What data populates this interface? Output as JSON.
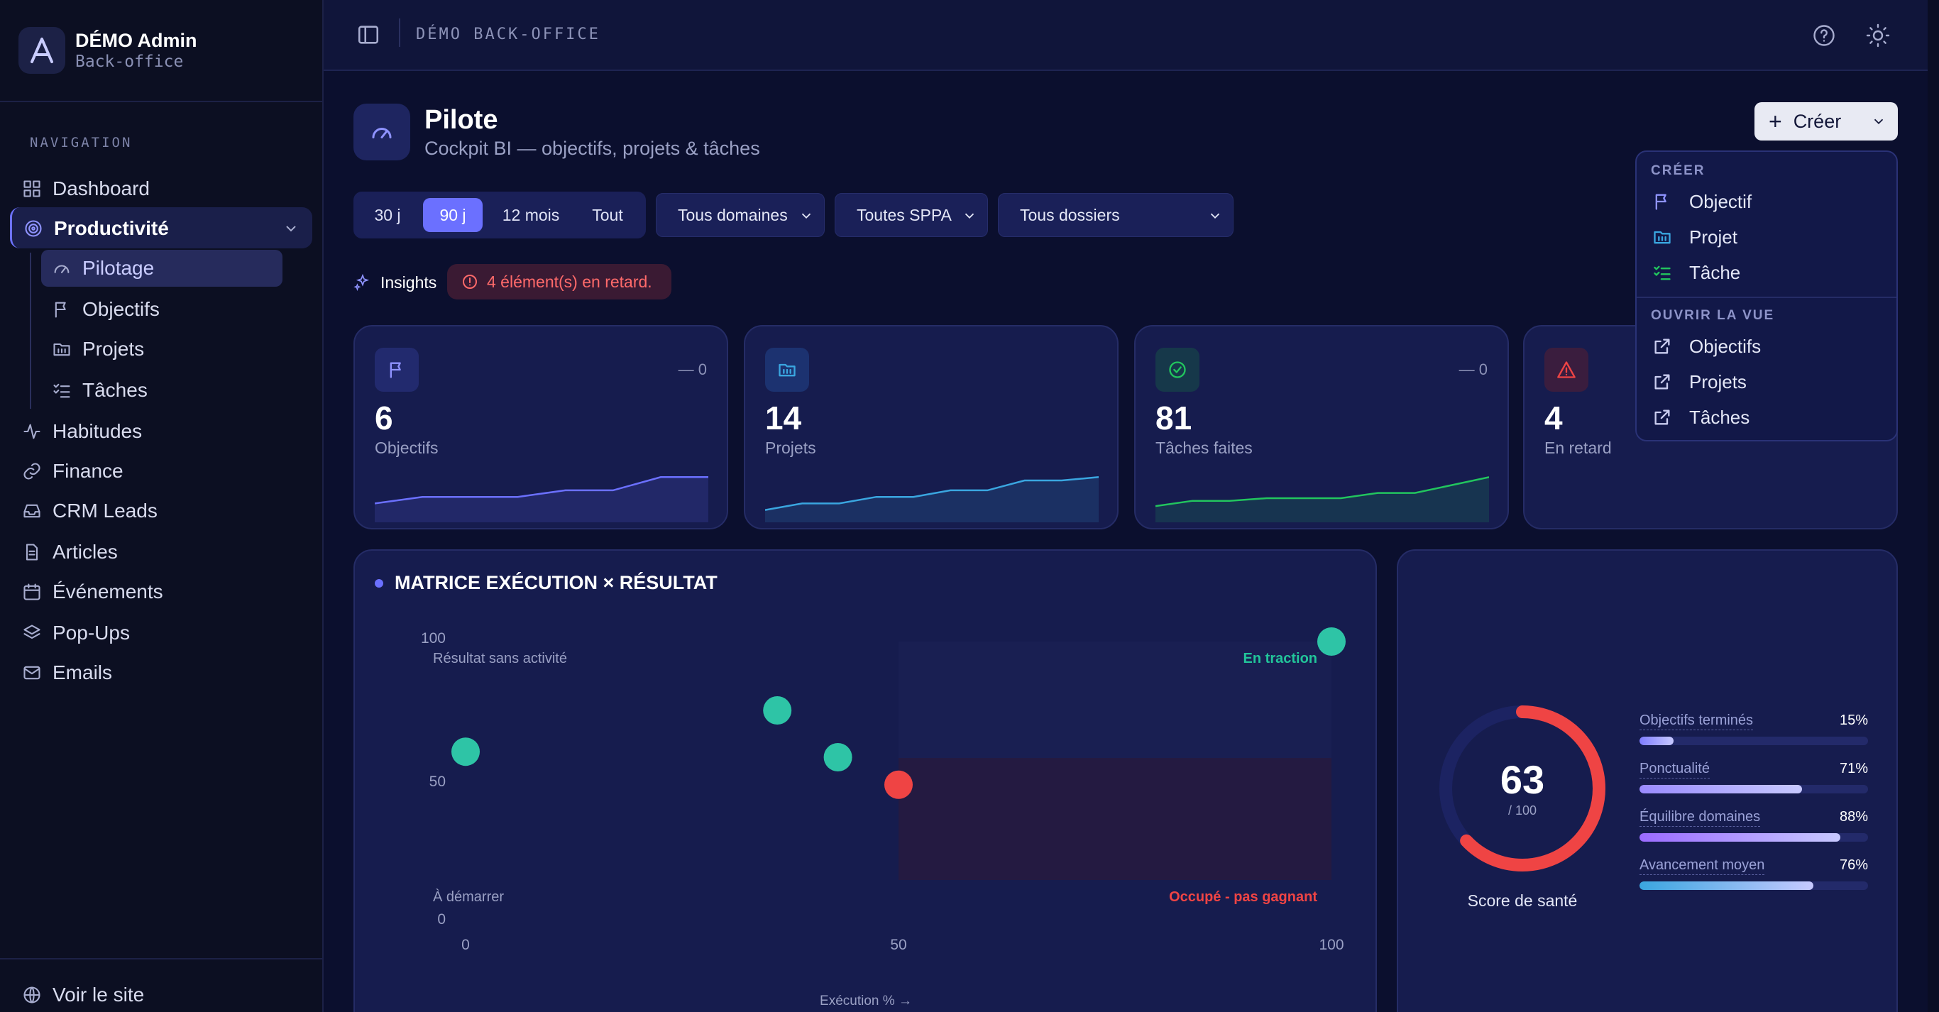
{
  "brand": {
    "name": "DÉMO Admin",
    "subtitle": "Back-office"
  },
  "nav": {
    "title": "NAVIGATION",
    "items": {
      "dashboard": "Dashboard",
      "productivite": "Productivité",
      "pilotage": "Pilotage",
      "objectifs": "Objectifs",
      "projets": "Projets",
      "taches": "Tâches",
      "habitudes": "Habitudes",
      "finance": "Finance",
      "crm": "CRM Leads",
      "articles": "Articles",
      "evenements": "Événements",
      "popups": "Pop-Ups",
      "emails": "Emails"
    },
    "footer": "Voir le site"
  },
  "topbar": {
    "title": "DÉMO BACK-OFFICE"
  },
  "header": {
    "title": "Pilote",
    "subtitle": "Cockpit BI — objectifs, projets & tâches"
  },
  "create_button": {
    "label": "Créer"
  },
  "filters": {
    "periods": [
      "30 j",
      "90 j",
      "12 mois",
      "Tout"
    ],
    "active_period": "90 j",
    "domain": "Tous domaines",
    "sppa": "Toutes SPPA",
    "dossiers": "Tous dossiers"
  },
  "insights": {
    "label": "Insights",
    "alert": "4 élément(s) en retard."
  },
  "kpis": [
    {
      "value": "6",
      "label": "Objectifs",
      "delta": "— 0",
      "icon": "flag-icon",
      "color": "#6b70ff",
      "trend": [
        2,
        3,
        3,
        3,
        4,
        4,
        6,
        6
      ]
    },
    {
      "value": "14",
      "label": "Projets",
      "delta": "",
      "icon": "folder-icon",
      "color": "#3aa6e0",
      "trend": [
        2,
        4,
        4,
        6,
        6,
        8,
        8,
        11,
        11,
        12
      ]
    },
    {
      "value": "81",
      "label": "Tâches faites",
      "delta": "— 0",
      "icon": "check-circle-icon",
      "color": "#22c55e",
      "trend": [
        4,
        6,
        6,
        7,
        7,
        7,
        9,
        9,
        12,
        15
      ]
    },
    {
      "value": "4",
      "label": "En retard",
      "delta": "",
      "icon": "warning-icon",
      "color": "#ef4444",
      "trend": []
    }
  ],
  "dropdown": {
    "section_create": "CRÉER",
    "create_items": [
      "Objectif",
      "Projet",
      "Tâche"
    ],
    "section_open": "OUVRIR LA VUE",
    "open_items": [
      "Objectifs",
      "Projets",
      "Tâches"
    ]
  },
  "chart_data": {
    "type": "scatter",
    "title": "MATRICE EXÉCUTION × RÉSULTAT",
    "xlabel": "Exécution % →",
    "ylabel": "",
    "xlim": [
      0,
      100
    ],
    "ylim": [
      0,
      100
    ],
    "x_ticks": [
      "0",
      "50",
      "100"
    ],
    "y_ticks": [
      "0",
      "50",
      "100"
    ],
    "quadrant_labels": {
      "top_left": "Résultat sans activité",
      "top_right": "En traction",
      "bottom_left": "À démarrer",
      "bottom_right": "Occupé - pas gagnant"
    },
    "points": [
      {
        "x": 0,
        "y": 60,
        "color": "#2ec4a6"
      },
      {
        "x": 36,
        "y": 75,
        "color": "#2ec4a6"
      },
      {
        "x": 43,
        "y": 58,
        "color": "#2ec4a6"
      },
      {
        "x": 50,
        "y": 48,
        "color": "#ef4444"
      },
      {
        "x": 100,
        "y": 100,
        "color": "#2ec4a6"
      }
    ]
  },
  "health": {
    "score": "63",
    "max": "/ 100",
    "score_value": 63,
    "label": "Score de santé",
    "metrics": [
      {
        "name": "Objectifs terminés",
        "value": "15%",
        "pct": 15,
        "color": "#7f7dff"
      },
      {
        "name": "Ponctualité",
        "value": "71%",
        "pct": 71,
        "color": "#9a8bff"
      },
      {
        "name": "Équilibre domaines",
        "value": "88%",
        "pct": 88,
        "color": "#9b6bff"
      },
      {
        "name": "Avancement moyen",
        "value": "76%",
        "pct": 76,
        "color": "#3aa6e0"
      }
    ]
  }
}
